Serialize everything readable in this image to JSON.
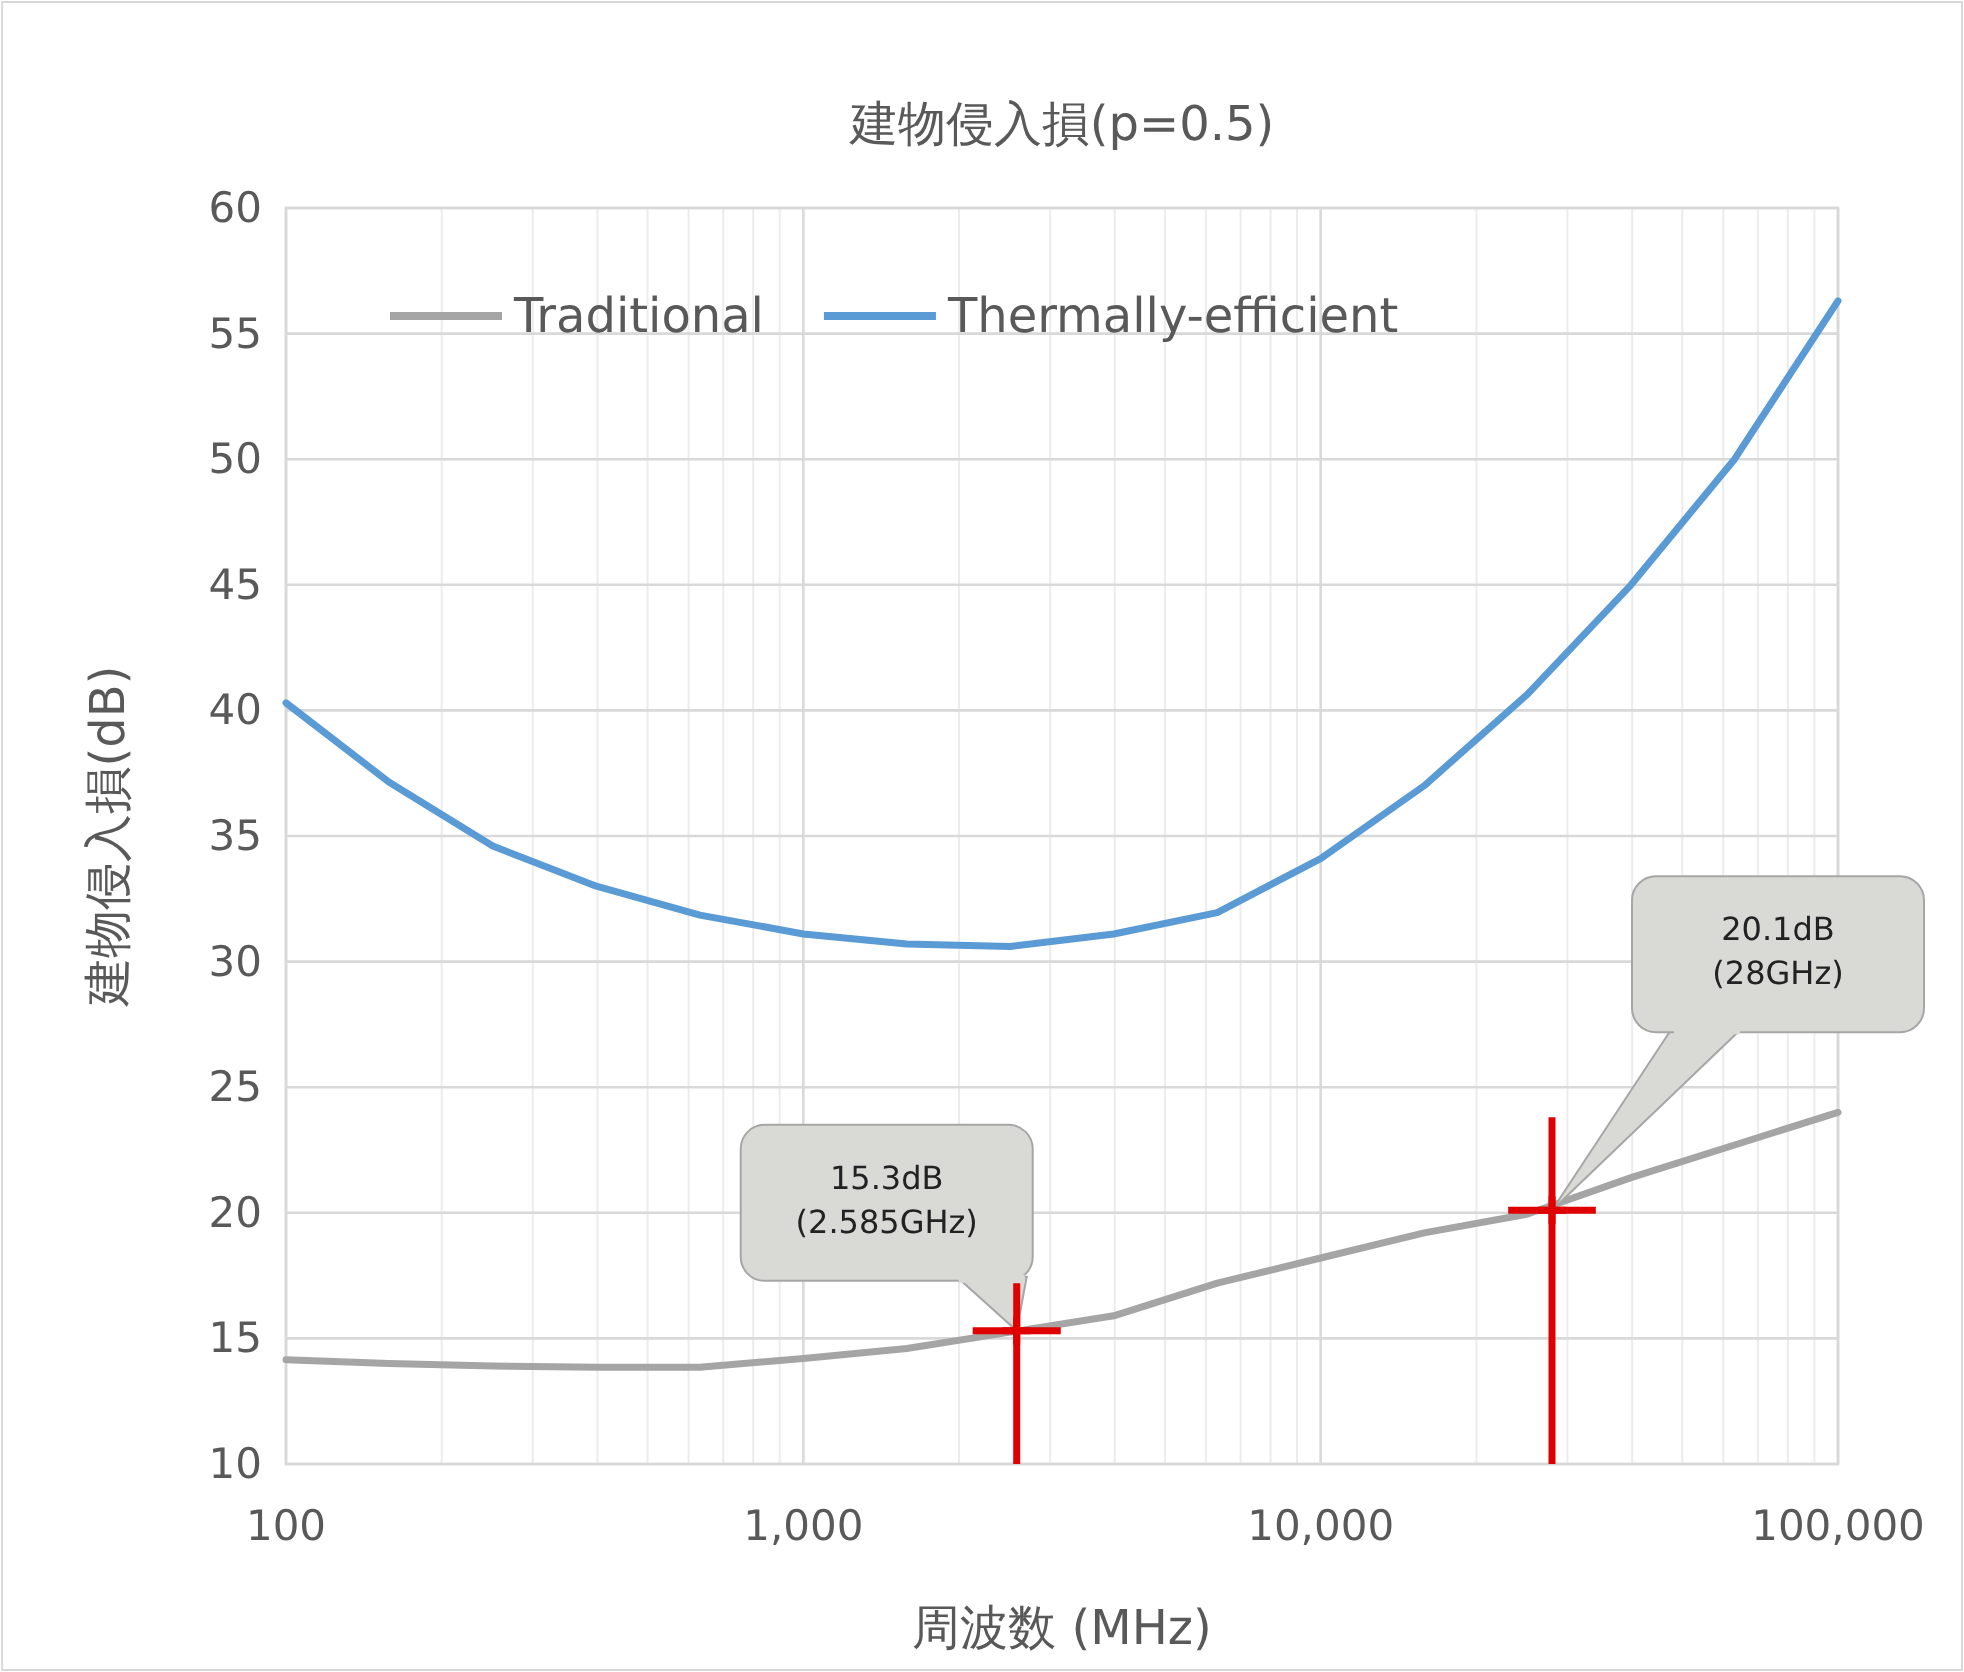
{
  "chart_data": {
    "type": "line",
    "title": "建物侵入損(p=0.5)",
    "xlabel": "周波数 (MHz)",
    "ylabel": "建物侵入損(dB)",
    "log": "x",
    "x": [
      100,
      158,
      251,
      398,
      631,
      1000,
      1585,
      2512,
      3981,
      6310,
      10000,
      15849,
      25119,
      39811,
      63096,
      100000
    ],
    "series": [
      {
        "name": "Traditional",
        "color": "#a5a5a5",
        "values": [
          14.15,
          14.0,
          13.9,
          13.85,
          13.85,
          14.2,
          14.6,
          15.25,
          15.9,
          17.2,
          18.2,
          19.2,
          19.95,
          21.4,
          22.7,
          24.0
        ]
      },
      {
        "name": "Thermally-efficient",
        "color": "#5b9bd5",
        "values": [
          40.3,
          37.15,
          34.6,
          33.0,
          31.85,
          31.1,
          30.7,
          30.6,
          31.1,
          31.95,
          34.1,
          37.0,
          40.65,
          45.0,
          50.0,
          56.3
        ]
      },
      {
        "type": "scatter",
        "marker": "cross",
        "color": "#e00000",
        "x": [
          2585,
          28000
        ],
        "values": [
          15.3,
          20.1
        ],
        "errors": [
          [
            10,
            17.2
          ],
          [
            10,
            23.8
          ]
        ],
        "xerrors": [
          [
            2125,
            3145
          ],
          [
            23040,
            34030
          ]
        ]
      }
    ],
    "xlim": [
      100,
      100000
    ],
    "xticks": [
      100,
      {
        "value": 1000,
        "label": "1,000"
      },
      {
        "value": 10000,
        "label": "10,000"
      },
      {
        "value": 100000,
        "label": "100,000"
      }
    ],
    "ylim": [
      10,
      60
    ],
    "yticks": [
      10,
      15,
      20,
      25,
      30,
      35,
      40,
      45,
      50,
      55,
      60
    ],
    "grid": true,
    "legend": "top left",
    "marker": "none",
    "line_style": "solid",
    "annotations": [
      "15.3dB\n(2.585GHz)",
      "20.1dB\n(28GHz)"
    ]
  }
}
